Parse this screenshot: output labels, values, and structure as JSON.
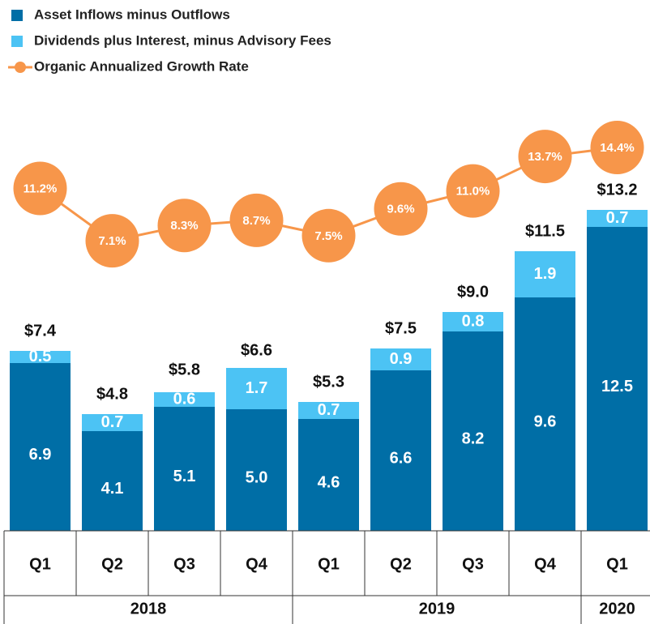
{
  "chart_data": {
    "type": "bar",
    "stacked": true,
    "groups": [
      {
        "name": "2018",
        "categories": [
          "Q1",
          "Q2",
          "Q3",
          "Q4"
        ]
      },
      {
        "name": "2019",
        "categories": [
          "Q1",
          "Q2",
          "Q3",
          "Q4"
        ]
      },
      {
        "name": "2020",
        "categories": [
          "Q1"
        ]
      }
    ],
    "series": [
      {
        "name": "Asset Inflows minus Outflows",
        "type": "bar",
        "color": "#006ea6",
        "values": [
          6.9,
          4.1,
          5.1,
          5.0,
          4.6,
          6.6,
          8.2,
          9.6,
          12.5
        ],
        "value_labels": [
          "6.9",
          "4.1",
          "5.1",
          "5.0",
          "4.6",
          "6.6",
          "8.2",
          "9.6",
          "12.5"
        ]
      },
      {
        "name": "Dividends plus Interest, minus Advisory Fees",
        "type": "bar",
        "color": "#4cc3f4",
        "values": [
          0.5,
          0.7,
          0.6,
          1.7,
          0.7,
          0.9,
          0.8,
          1.9,
          0.7
        ],
        "value_labels": [
          "0.5",
          "0.7",
          "0.6",
          "1.7",
          "0.7",
          "0.9",
          "0.8",
          "1.9",
          "0.7"
        ]
      },
      {
        "name": "Organic Annualized Growth Rate",
        "type": "line",
        "axis": "y2",
        "color": "#f7964a",
        "values": [
          11.2,
          7.1,
          8.3,
          8.7,
          7.5,
          9.6,
          11.0,
          13.7,
          14.4
        ],
        "value_labels": [
          "11.2%",
          "7.1%",
          "8.3%",
          "8.7%",
          "7.5%",
          "9.6%",
          "11.0%",
          "13.7%",
          "14.4%"
        ]
      }
    ],
    "totals": {
      "values": [
        7.4,
        4.8,
        5.8,
        6.6,
        5.3,
        7.5,
        9.0,
        11.5,
        13.2
      ],
      "value_labels": [
        "$7.4",
        "$4.8",
        "$5.8",
        "$6.6",
        "$5.3",
        "$7.5",
        "$9.0",
        "$11.5",
        "$13.2"
      ]
    },
    "ylim": [
      0,
      17.5
    ],
    "y2lim": [
      -15.6,
      17.7
    ],
    "legend": "top-left"
  }
}
